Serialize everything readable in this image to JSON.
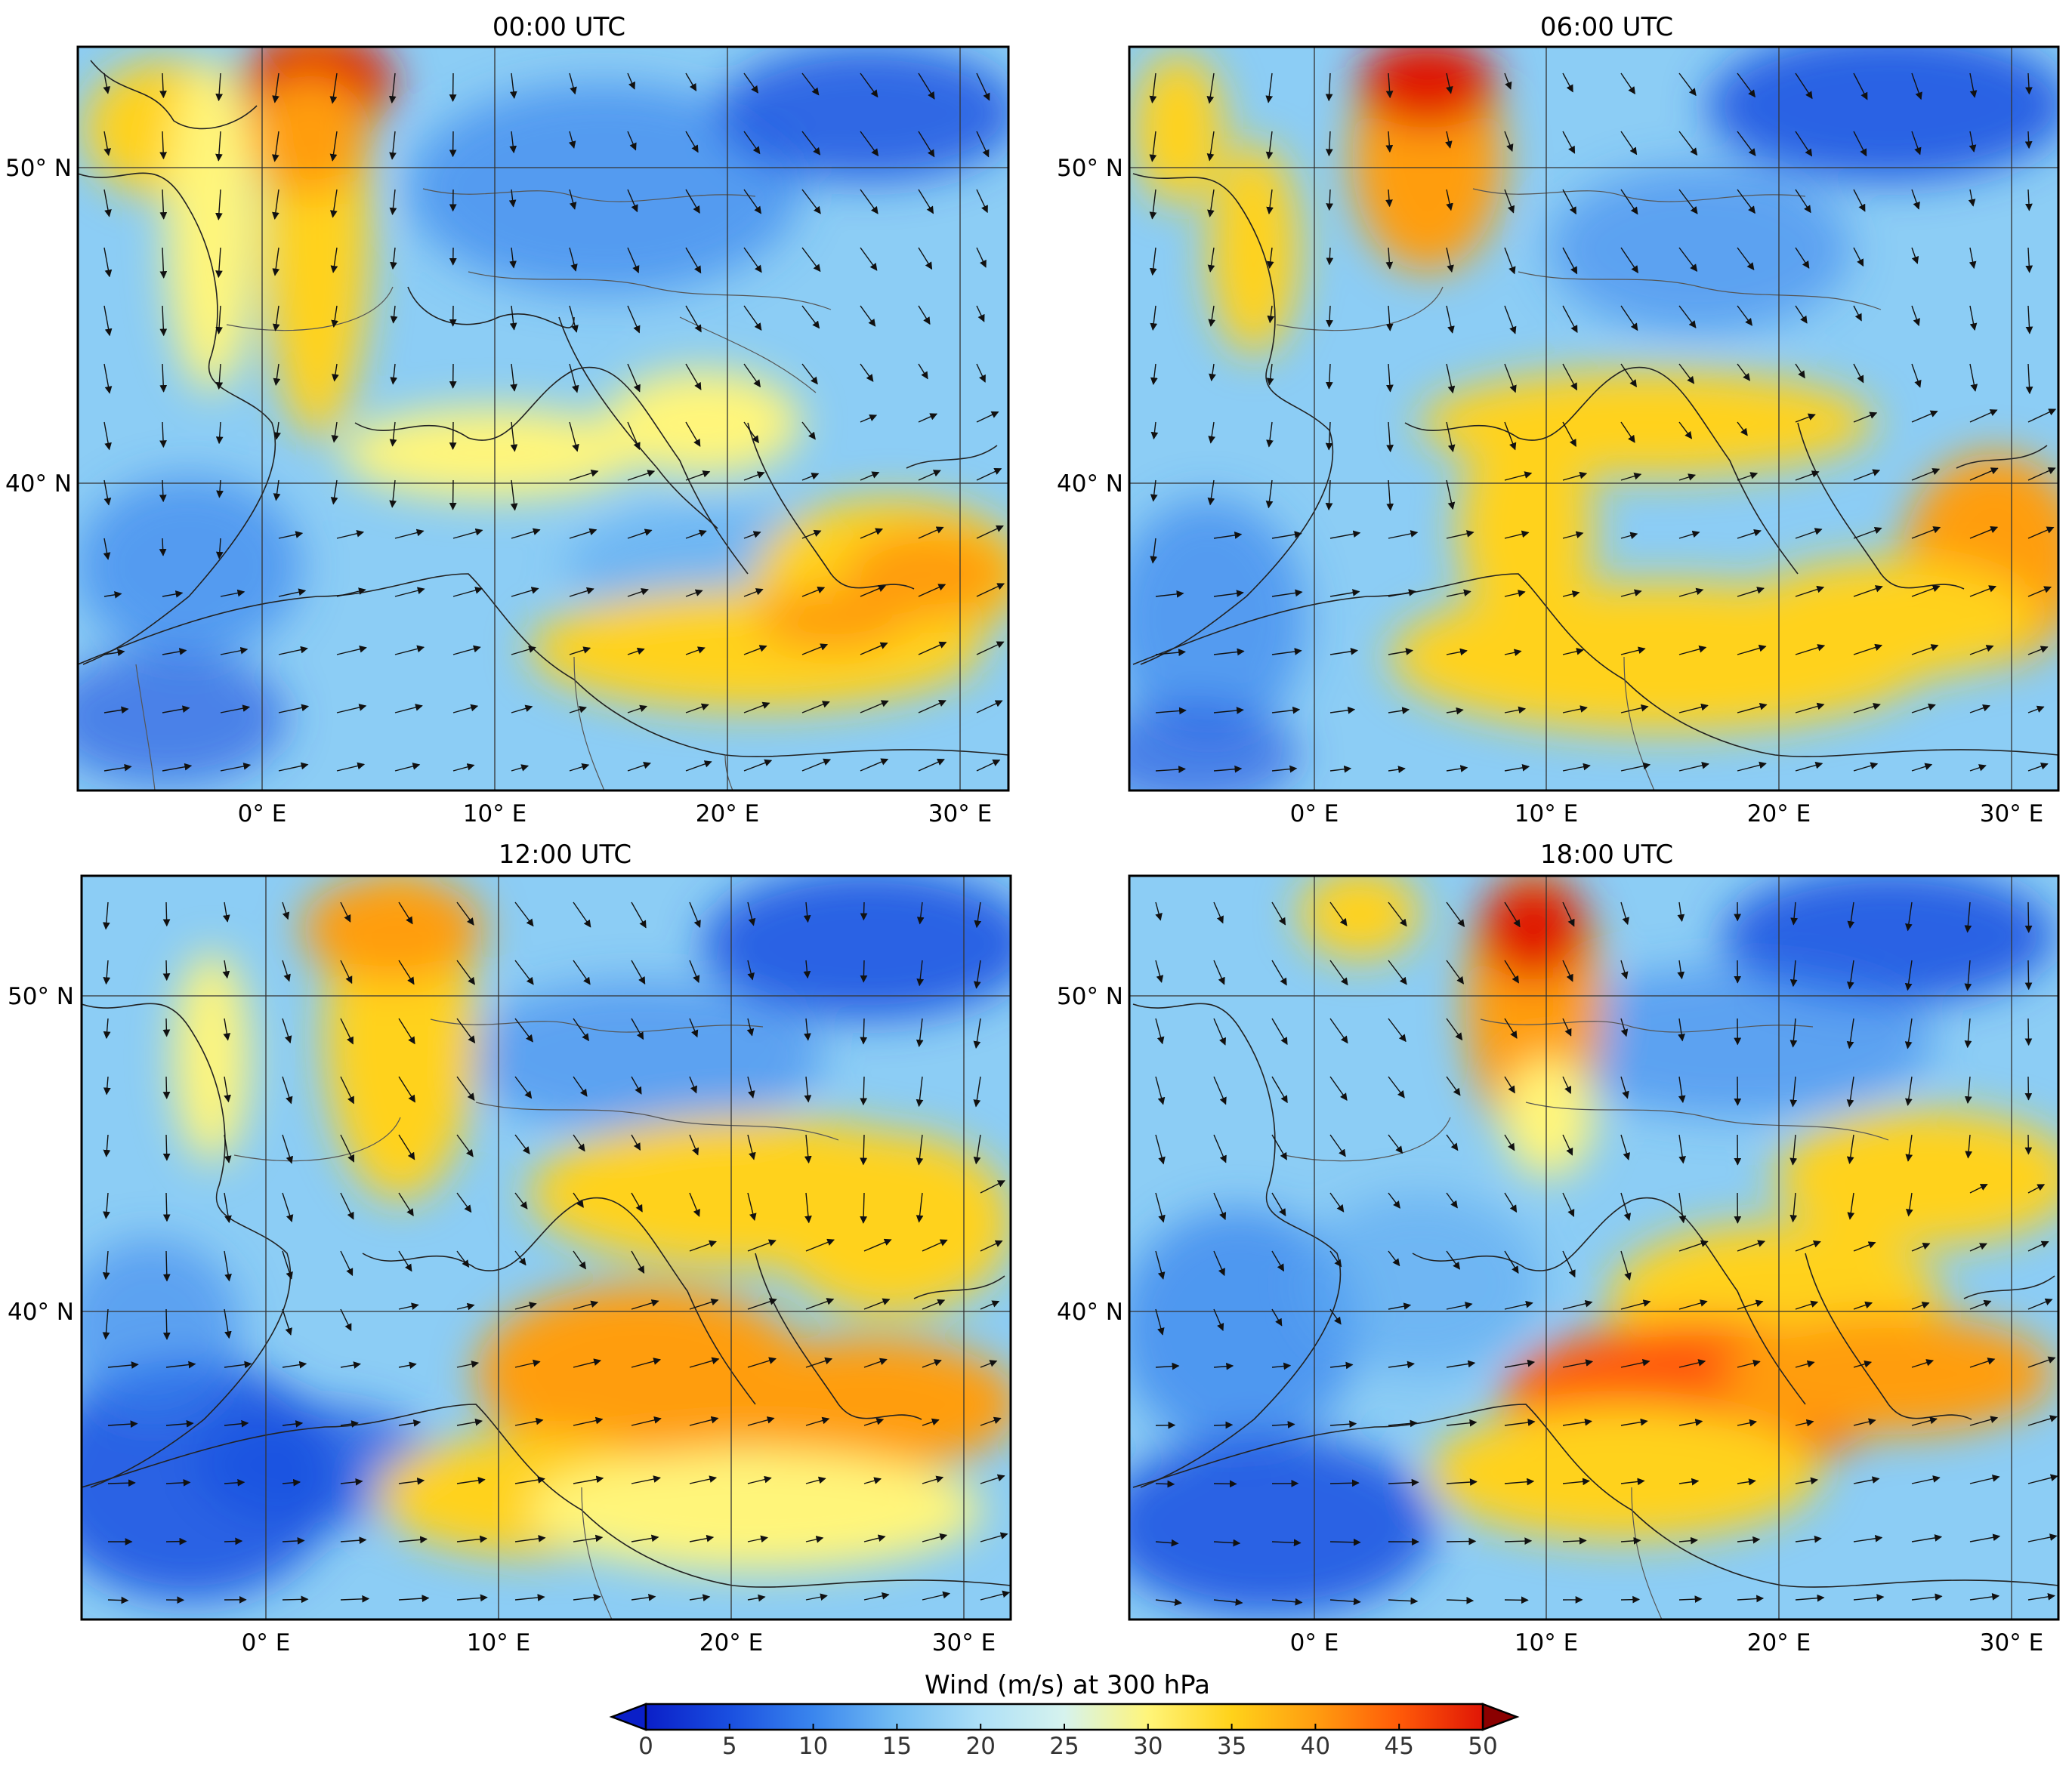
{
  "colorbar": {
    "title": "Wind (m/s) at 300 hPa",
    "ticks": [
      "0",
      "5",
      "10",
      "15",
      "20",
      "25",
      "30",
      "35",
      "40",
      "45",
      "50"
    ],
    "vmin": 0,
    "vmax": 50,
    "extend": "both",
    "colormap": [
      "#0a1fc8",
      "#1a4fe0",
      "#3a86ee",
      "#74bdf3",
      "#aee0f7",
      "#d6f3ee",
      "#fff57a",
      "#ffd21a",
      "#ff9d10",
      "#ff5a08",
      "#e01606",
      "#8b0000"
    ]
  },
  "lon_labels": [
    "0° E",
    "10° E",
    "20° E",
    "30° E"
  ],
  "lat_labels": [
    "50° N",
    "40° N"
  ],
  "panels": [
    {
      "title": "00:00 UTC"
    },
    {
      "title": "06:00 UTC"
    },
    {
      "title": "12:00 UTC"
    },
    {
      "title": "18:00 UTC"
    }
  ]
}
